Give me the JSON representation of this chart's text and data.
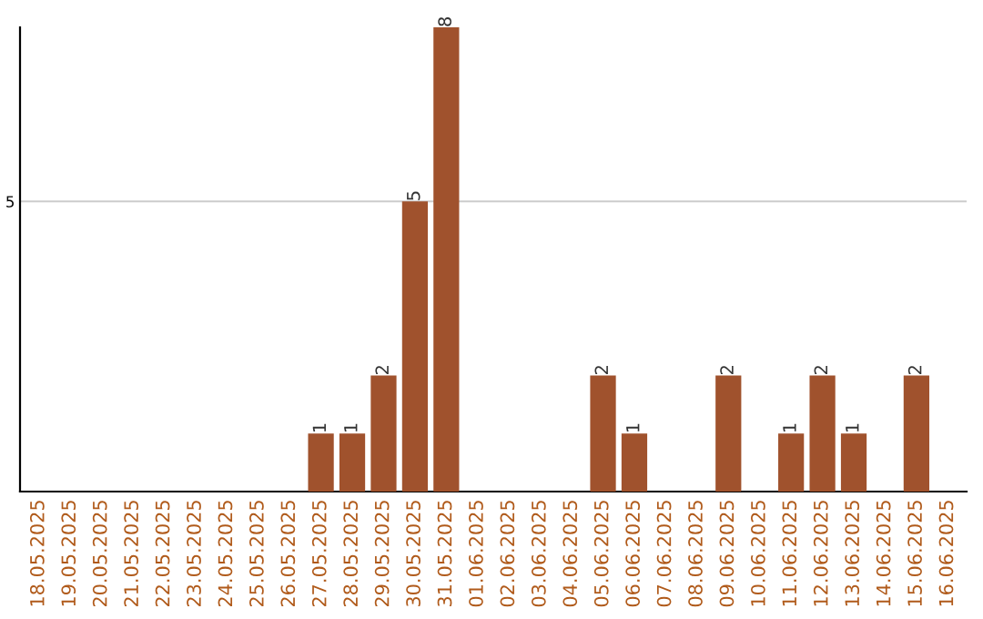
{
  "chart_data": {
    "type": "bar",
    "categories": [
      "18.05.2025",
      "19.05.2025",
      "20.05.2025",
      "21.05.2025",
      "22.05.2025",
      "23.05.2025",
      "24.05.2025",
      "25.05.2025",
      "26.05.2025",
      "27.05.2025",
      "28.05.2025",
      "29.05.2025",
      "30.05.2025",
      "31.05.2025",
      "01.06.2025",
      "02.06.2025",
      "03.06.2025",
      "04.06.2025",
      "05.06.2025",
      "06.06.2025",
      "07.06.2025",
      "08.06.2025",
      "09.06.2025",
      "10.06.2025",
      "11.06.2025",
      "12.06.2025",
      "13.06.2025",
      "14.06.2025",
      "15.06.2025",
      "16.06.2025"
    ],
    "values": [
      0,
      0,
      0,
      0,
      0,
      0,
      0,
      0,
      0,
      1,
      1,
      2,
      5,
      8,
      0,
      0,
      0,
      0,
      2,
      1,
      0,
      0,
      2,
      0,
      1,
      2,
      1,
      0,
      2,
      0
    ],
    "value_labels": [
      null,
      null,
      null,
      null,
      null,
      null,
      null,
      null,
      null,
      "1",
      "1",
      "2",
      "5",
      "8",
      null,
      null,
      null,
      null,
      "2",
      "1",
      null,
      null,
      "2",
      null,
      "1",
      "2",
      "1",
      null,
      "2",
      null
    ],
    "color": "#a0522d",
    "ylim": [
      0,
      8
    ],
    "yticks": [
      5
    ],
    "grid": "y"
  }
}
